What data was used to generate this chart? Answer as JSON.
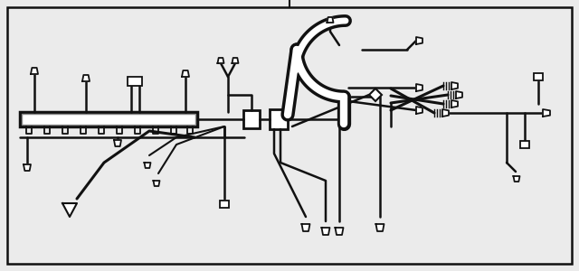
{
  "bg_color": "#ebebeb",
  "border_color": "#111111",
  "lc": "#111111",
  "white": "#ffffff",
  "fig_width": 6.4,
  "fig_height": 3.0,
  "dpi": 100
}
